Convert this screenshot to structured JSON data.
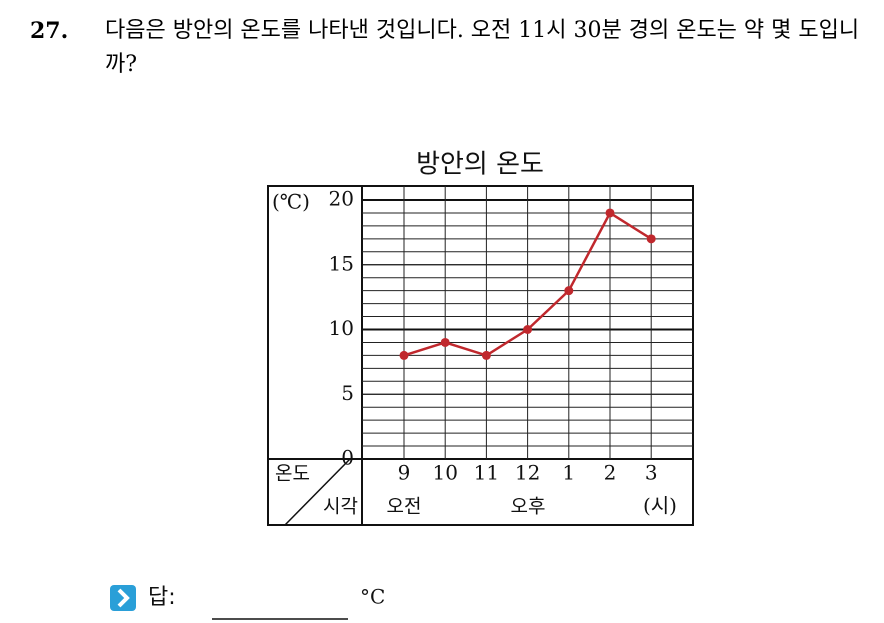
{
  "question": {
    "number": "27.",
    "text": "다음은 방안의 온도를 나타낸 것입니다. 오전 11시 30분 경의 온도는 약 몇 도입니까?"
  },
  "chart_data": {
    "type": "line",
    "title": "방안의 온도",
    "y_unit": "(℃)",
    "categories": [
      "9",
      "10",
      "11",
      "12",
      "1",
      "2",
      "3"
    ],
    "series": [
      {
        "name": "온도",
        "color": "#c0282d",
        "values": [
          8,
          9,
          8,
          10,
          13,
          19,
          17
        ]
      }
    ],
    "ylim": [
      0,
      20
    ],
    "yticks": [
      0,
      5,
      10,
      15,
      20
    ],
    "grid": true,
    "corner_top": "온도",
    "corner_bottom": "시각",
    "am_label": "오전",
    "pm_label": "오후",
    "x_unit": "(시)"
  },
  "answer": {
    "label": "답:",
    "unit": "°C"
  }
}
